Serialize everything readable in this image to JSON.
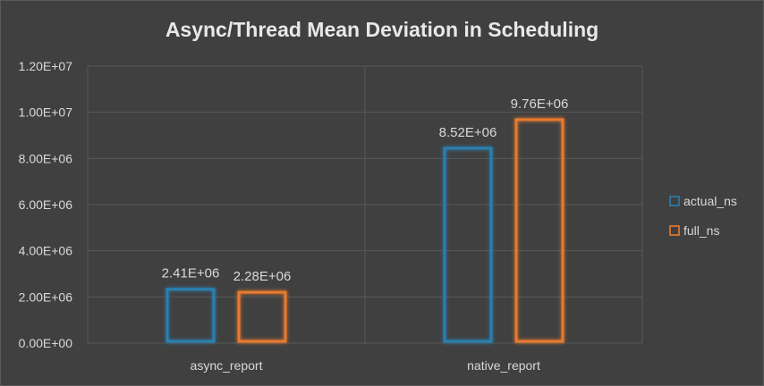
{
  "chart_data": {
    "type": "bar",
    "title": "Async/Thread Mean Deviation in Scheduling",
    "xlabel": "",
    "ylabel": "",
    "categories": [
      "async_report",
      "native_report"
    ],
    "series": [
      {
        "name": "actual_ns",
        "values": [
          2410000,
          8520000
        ],
        "labels": [
          "2.41E+06",
          "8.52E+06"
        ],
        "color": "#2a7fb0"
      },
      {
        "name": "full_ns",
        "values": [
          2280000,
          9760000
        ],
        "labels": [
          "2.28E+06",
          "9.76E+06"
        ],
        "color": "#e87a2e"
      }
    ],
    "ylim": [
      0,
      12000000
    ],
    "yticks": [
      0,
      2000000,
      4000000,
      6000000,
      8000000,
      10000000,
      12000000
    ],
    "ytick_labels": [
      "0.00E+00",
      "2.00E+06",
      "4.00E+06",
      "6.00E+06",
      "8.00E+06",
      "1.00E+07",
      "1.20E+07"
    ],
    "grid": true,
    "legend_position": "right"
  }
}
